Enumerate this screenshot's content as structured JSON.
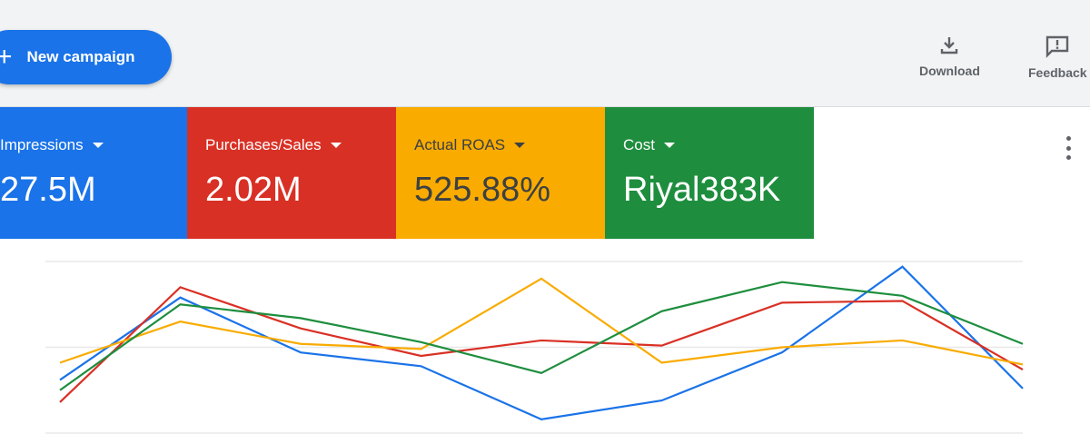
{
  "toolbar": {
    "new_campaign_label": "New campaign",
    "download_label": "Download",
    "feedback_label": "Feedback"
  },
  "metrics": [
    {
      "label": "Impressions",
      "value": "27.5M",
      "color": "#1a73e8"
    },
    {
      "label": "Purchases/Sales",
      "value": "2.02M",
      "color": "#d93025"
    },
    {
      "label": "Actual ROAS",
      "value": "525.88%",
      "color": "#f9ab00"
    },
    {
      "label": "Cost",
      "value": "Riyal383K",
      "color": "#1e8e3e"
    }
  ],
  "chart_data": {
    "type": "line",
    "title": "",
    "xlabel": "",
    "ylabel": "",
    "x": [
      1,
      2,
      3,
      4,
      5,
      6,
      7,
      8,
      9
    ],
    "ylim": [
      0,
      100
    ],
    "grid": true,
    "series": [
      {
        "name": "Impressions",
        "color": "#1a73e8",
        "values": [
          31,
          79,
          47,
          39,
          8,
          19,
          47,
          97,
          26
        ]
      },
      {
        "name": "Purchases/Sales",
        "color": "#d93025",
        "values": [
          18,
          85,
          61,
          45,
          54,
          51,
          76,
          77,
          37
        ]
      },
      {
        "name": "Actual ROAS",
        "color": "#f9ab00",
        "values": [
          41,
          65,
          52,
          49,
          90,
          41,
          50,
          54,
          40
        ]
      },
      {
        "name": "Cost",
        "color": "#1e8e3e",
        "values": [
          25,
          75,
          67,
          53,
          35,
          71,
          88,
          80,
          52
        ]
      }
    ]
  }
}
